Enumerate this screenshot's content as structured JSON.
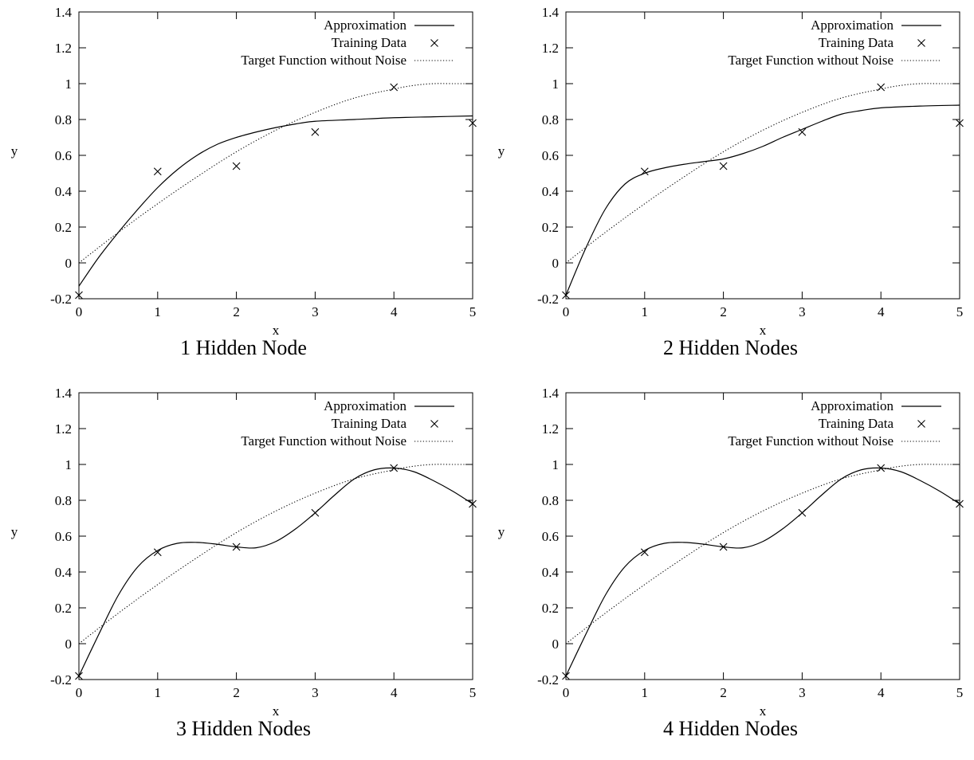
{
  "legend_labels": {
    "approx": "Approximation",
    "training": "Training Data",
    "target": "Target Function without Noise"
  },
  "chart_data": [
    {
      "type": "line",
      "caption": "1 Hidden Node",
      "xlabel": "x",
      "ylabel": "y",
      "xlim": [
        0,
        5
      ],
      "ylim": [
        -0.2,
        1.4
      ],
      "xticks": [
        0,
        1,
        2,
        3,
        4,
        5
      ],
      "yticks": [
        -0.2,
        0,
        0.2,
        0.4,
        0.6,
        0.8,
        1,
        1.2,
        1.4
      ],
      "legend_position": "top-right",
      "series": [
        {
          "name": "Approximation",
          "style": "solid",
          "x": [
            0,
            0.25,
            0.5,
            0.75,
            1,
            1.25,
            1.5,
            1.75,
            2,
            2.25,
            2.5,
            2.75,
            3,
            3.5,
            4,
            4.5,
            5
          ],
          "y": [
            -0.13,
            0.03,
            0.17,
            0.3,
            0.42,
            0.52,
            0.6,
            0.66,
            0.7,
            0.73,
            0.755,
            0.775,
            0.79,
            0.8,
            0.81,
            0.815,
            0.82
          ]
        },
        {
          "name": "Training Data",
          "style": "points",
          "x": [
            0,
            1,
            2,
            3,
            4,
            5
          ],
          "y": [
            -0.18,
            0.51,
            0.54,
            0.73,
            0.98,
            0.78
          ]
        },
        {
          "name": "Target Function without Noise",
          "style": "dotted",
          "x": [
            0,
            0.5,
            1,
            1.5,
            2,
            2.5,
            3,
            3.5,
            4,
            4.25,
            4.5,
            4.75,
            5
          ],
          "y": [
            0,
            0.17,
            0.33,
            0.48,
            0.62,
            0.74,
            0.84,
            0.92,
            0.97,
            0.99,
            1.0,
            1.0,
            1.0
          ]
        }
      ]
    },
    {
      "type": "line",
      "caption": "2 Hidden Nodes",
      "xlabel": "x",
      "ylabel": "y",
      "xlim": [
        0,
        5
      ],
      "ylim": [
        -0.2,
        1.4
      ],
      "xticks": [
        0,
        1,
        2,
        3,
        4,
        5
      ],
      "yticks": [
        -0.2,
        0,
        0.2,
        0.4,
        0.6,
        0.8,
        1,
        1.2,
        1.4
      ],
      "legend_position": "top-right",
      "series": [
        {
          "name": "Approximation",
          "style": "solid",
          "x": [
            0,
            0.25,
            0.5,
            0.75,
            1,
            1.25,
            1.5,
            1.75,
            2,
            2.25,
            2.5,
            2.75,
            3,
            3.25,
            3.5,
            3.75,
            4,
            4.5,
            5
          ],
          "y": [
            -0.18,
            0.08,
            0.3,
            0.44,
            0.5,
            0.53,
            0.55,
            0.565,
            0.58,
            0.61,
            0.65,
            0.7,
            0.745,
            0.79,
            0.83,
            0.85,
            0.865,
            0.875,
            0.88
          ]
        },
        {
          "name": "Training Data",
          "style": "points",
          "x": [
            0,
            1,
            2,
            3,
            4,
            5
          ],
          "y": [
            -0.18,
            0.51,
            0.54,
            0.73,
            0.98,
            0.78
          ]
        },
        {
          "name": "Target Function without Noise",
          "style": "dotted",
          "x": [
            0,
            0.5,
            1,
            1.5,
            2,
            2.5,
            3,
            3.5,
            4,
            4.25,
            4.5,
            4.75,
            5
          ],
          "y": [
            0,
            0.17,
            0.33,
            0.48,
            0.62,
            0.74,
            0.84,
            0.92,
            0.97,
            0.99,
            1.0,
            1.0,
            1.0
          ]
        }
      ]
    },
    {
      "type": "line",
      "caption": "3 Hidden Nodes",
      "xlabel": "x",
      "ylabel": "y",
      "xlim": [
        0,
        5
      ],
      "ylim": [
        -0.2,
        1.4
      ],
      "xticks": [
        0,
        1,
        2,
        3,
        4,
        5
      ],
      "yticks": [
        -0.2,
        0,
        0.2,
        0.4,
        0.6,
        0.8,
        1,
        1.2,
        1.4
      ],
      "legend_position": "top-right",
      "series": [
        {
          "name": "Approximation",
          "style": "solid",
          "x": [
            0,
            0.25,
            0.5,
            0.75,
            1,
            1.25,
            1.5,
            1.75,
            2,
            2.25,
            2.5,
            2.75,
            3,
            3.25,
            3.5,
            3.75,
            4,
            4.25,
            4.5,
            4.75,
            5
          ],
          "y": [
            -0.18,
            0.05,
            0.27,
            0.43,
            0.52,
            0.56,
            0.565,
            0.555,
            0.54,
            0.535,
            0.57,
            0.64,
            0.73,
            0.83,
            0.92,
            0.97,
            0.98,
            0.96,
            0.91,
            0.85,
            0.78
          ]
        },
        {
          "name": "Training Data",
          "style": "points",
          "x": [
            0,
            1,
            2,
            3,
            4,
            5
          ],
          "y": [
            -0.18,
            0.51,
            0.54,
            0.73,
            0.98,
            0.78
          ]
        },
        {
          "name": "Target Function without Noise",
          "style": "dotted",
          "x": [
            0,
            0.5,
            1,
            1.5,
            2,
            2.5,
            3,
            3.5,
            4,
            4.25,
            4.5,
            4.75,
            5
          ],
          "y": [
            0,
            0.17,
            0.33,
            0.48,
            0.62,
            0.74,
            0.84,
            0.92,
            0.97,
            0.99,
            1.0,
            1.0,
            1.0
          ]
        }
      ]
    },
    {
      "type": "line",
      "caption": "4 Hidden Nodes",
      "xlabel": "x",
      "ylabel": "y",
      "xlim": [
        0,
        5
      ],
      "ylim": [
        -0.2,
        1.4
      ],
      "xticks": [
        0,
        1,
        2,
        3,
        4,
        5
      ],
      "yticks": [
        -0.2,
        0,
        0.2,
        0.4,
        0.6,
        0.8,
        1,
        1.2,
        1.4
      ],
      "legend_position": "top-right",
      "series": [
        {
          "name": "Approximation",
          "style": "solid",
          "x": [
            0,
            0.25,
            0.5,
            0.75,
            1,
            1.25,
            1.5,
            1.75,
            2,
            2.25,
            2.5,
            2.75,
            3,
            3.25,
            3.5,
            3.75,
            4,
            4.25,
            4.5,
            4.75,
            5
          ],
          "y": [
            -0.18,
            0.05,
            0.27,
            0.43,
            0.52,
            0.56,
            0.565,
            0.555,
            0.54,
            0.535,
            0.57,
            0.64,
            0.73,
            0.83,
            0.92,
            0.97,
            0.98,
            0.96,
            0.91,
            0.85,
            0.78
          ]
        },
        {
          "name": "Training Data",
          "style": "points",
          "x": [
            0,
            1,
            2,
            3,
            4,
            5
          ],
          "y": [
            -0.18,
            0.51,
            0.54,
            0.73,
            0.98,
            0.78
          ]
        },
        {
          "name": "Target Function without Noise",
          "style": "dotted",
          "x": [
            0,
            0.5,
            1,
            1.5,
            2,
            2.5,
            3,
            3.5,
            4,
            4.25,
            4.5,
            4.75,
            5
          ],
          "y": [
            0,
            0.17,
            0.33,
            0.48,
            0.62,
            0.74,
            0.84,
            0.92,
            0.97,
            0.99,
            1.0,
            1.0,
            1.0
          ]
        }
      ]
    }
  ]
}
